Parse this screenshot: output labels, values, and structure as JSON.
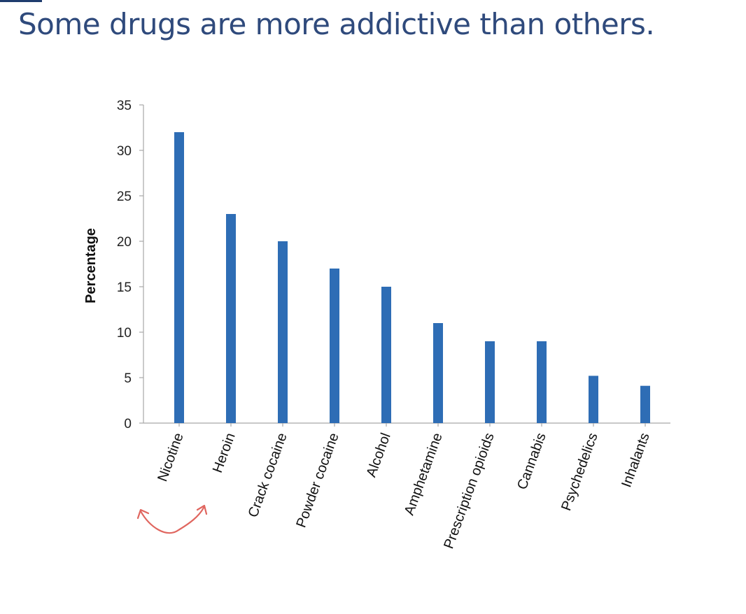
{
  "title": "Some drugs are more addictive than others.",
  "colors": {
    "title": "#2f4a7c",
    "bar": "#2e6db5",
    "axis": "#a8a8a8",
    "annotation": "#e0665f"
  },
  "chart_data": {
    "type": "bar",
    "title": "",
    "xlabel": "",
    "ylabel": "Percentage",
    "ylim": [
      0,
      35
    ],
    "yticks": [
      0,
      5,
      10,
      15,
      20,
      25,
      30,
      35
    ],
    "grid": false,
    "legend": "none",
    "categories": [
      "Nicotine",
      "Heroin",
      "Crack cocaine",
      "Powder cocaine",
      "Alcohol",
      "Amphetamine",
      "Prescription opioids",
      "Cannabis",
      "Psychedelics",
      "Inhalants"
    ],
    "values": [
      32,
      23,
      20,
      17,
      15,
      11,
      9,
      9,
      5.2,
      4.1
    ],
    "annotation": "hand-drawn curved double-headed arrow linking Nicotine and Heroin"
  }
}
